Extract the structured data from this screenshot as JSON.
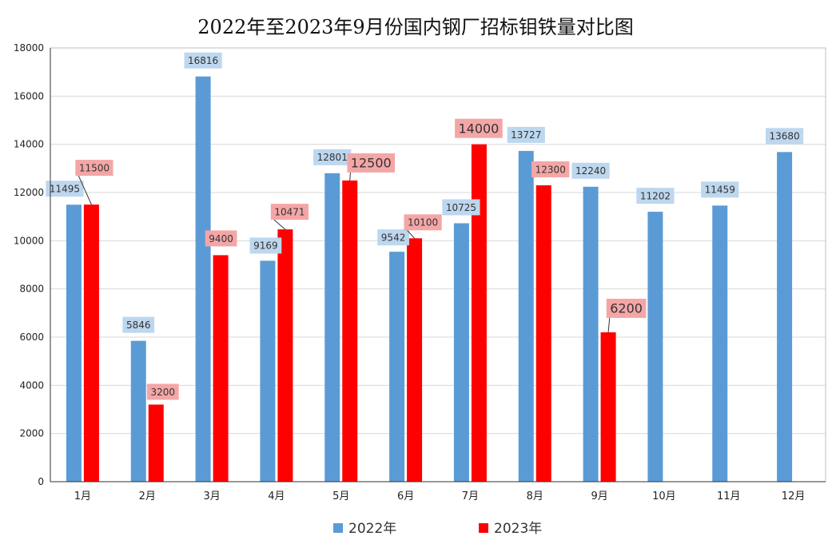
{
  "chart_data": {
    "type": "bar",
    "title": "2022年至2023年9月份国内钢厂招标钼铁量对比图",
    "xlabel": "",
    "ylabel": "",
    "ylim": [
      0,
      18000
    ],
    "yticks": [
      0,
      2000,
      4000,
      6000,
      8000,
      10000,
      12000,
      14000,
      16000,
      18000
    ],
    "grid": true,
    "legend_position": "bottom",
    "categories": [
      "1月",
      "2月",
      "3月",
      "4月",
      "5月",
      "6月",
      "7月",
      "8月",
      "9月",
      "10月",
      "11月",
      "12月"
    ],
    "series": [
      {
        "name": "2022年",
        "color": "#5b9bd5",
        "label_bg": "#bdd7ee",
        "values": [
          11495,
          5846,
          16816,
          9169,
          12801,
          9542,
          10725,
          13727,
          12240,
          11202,
          11459,
          13680
        ]
      },
      {
        "name": "2023年",
        "color": "#ff0000",
        "label_bg": "#f4a6a6",
        "values": [
          11500,
          3200,
          9400,
          10471,
          12500,
          10100,
          14000,
          12300,
          6200,
          null,
          null,
          null
        ]
      }
    ]
  }
}
